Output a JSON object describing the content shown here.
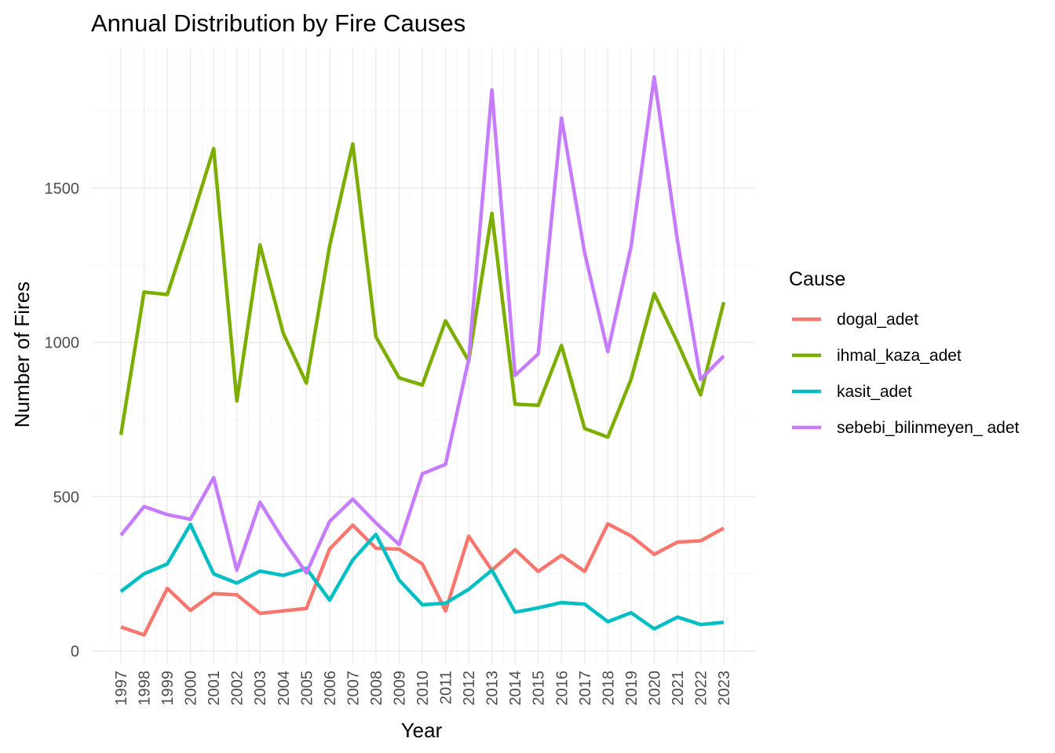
{
  "chart_data": {
    "type": "line",
    "title": "Annual Distribution by Fire Causes",
    "xlabel": "Year",
    "ylabel": "Number of Fires",
    "x": [
      "1997",
      "1998",
      "1999",
      "2000",
      "2001",
      "2002",
      "2003",
      "2004",
      "2005",
      "2006",
      "2007",
      "2008",
      "2009",
      "2010",
      "2011",
      "2012",
      "2013",
      "2014",
      "2015",
      "2016",
      "2017",
      "2018",
      "2019",
      "2020",
      "2021",
      "2022",
      "2023"
    ],
    "yticks": [
      0,
      500,
      1000,
      1500
    ],
    "ylim": [
      -35,
      1960
    ],
    "grid": true,
    "legend": {
      "title": "Cause",
      "position": "right"
    },
    "series": [
      {
        "name": "dogal_adet",
        "color": "#F8766D",
        "values": [
          78,
          52,
          203,
          132,
          186,
          182,
          122,
          130,
          138,
          330,
          408,
          333,
          330,
          282,
          130,
          372,
          262,
          328,
          258,
          310,
          258,
          412,
          373,
          313,
          353,
          357,
          398
        ]
      },
      {
        "name": "ihmal_kaza_adet",
        "color": "#7CAE00",
        "values": [
          700,
          1163,
          1155,
          1385,
          1628,
          810,
          1316,
          1030,
          868,
          1312,
          1643,
          1018,
          885,
          862,
          1070,
          940,
          1418,
          800,
          796,
          990,
          721,
          693,
          880,
          1158,
          1000,
          830,
          1130
        ]
      },
      {
        "name": "kasit_adet",
        "color": "#00BFC4",
        "values": [
          193,
          250,
          282,
          410,
          250,
          220,
          259,
          245,
          268,
          165,
          295,
          378,
          230,
          150,
          155,
          200,
          262,
          126,
          140,
          157,
          152,
          95,
          124,
          72,
          110,
          86,
          93
        ]
      },
      {
        "name": "sebebi_bilinmeyen_ adet",
        "color": "#C77CFF",
        "values": [
          375,
          468,
          442,
          427,
          562,
          262,
          482,
          360,
          253,
          420,
          492,
          415,
          345,
          574,
          605,
          945,
          1818,
          893,
          963,
          1727,
          1290,
          970,
          1310,
          1860,
          1330,
          880,
          956
        ]
      }
    ]
  }
}
